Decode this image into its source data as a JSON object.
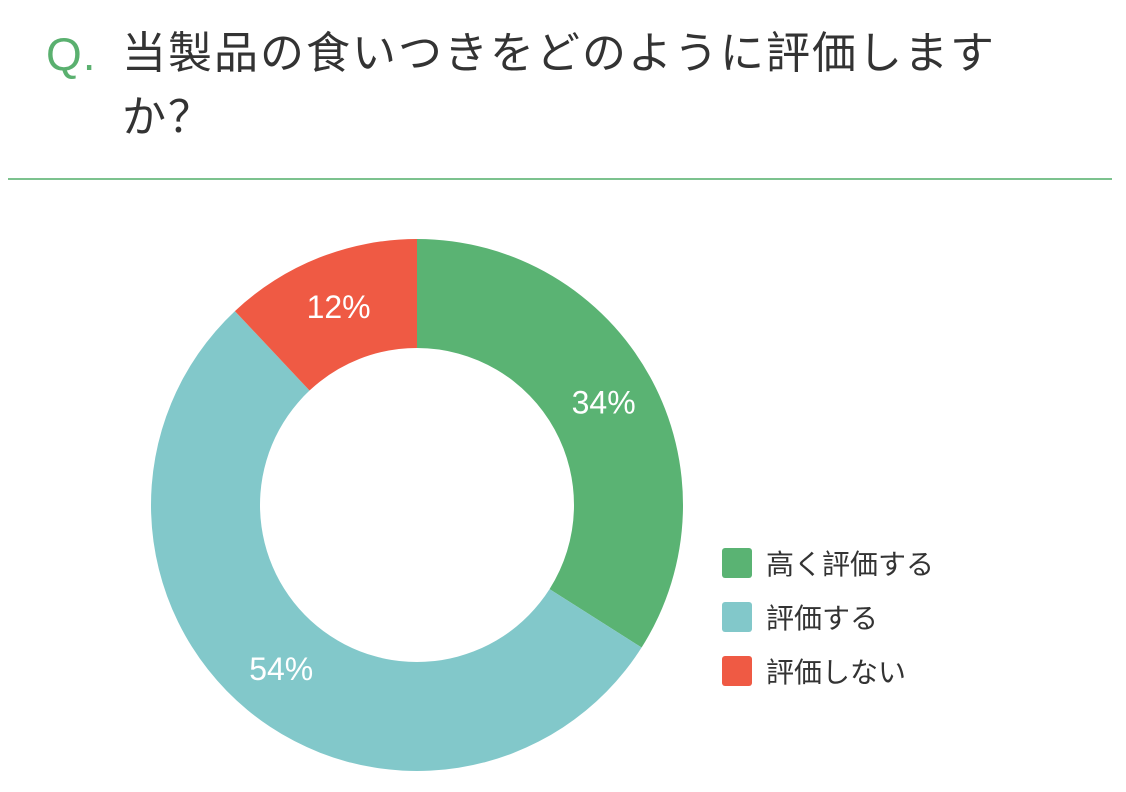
{
  "question": {
    "prefix": "Q.",
    "text": "当製品の食いつきをどのように評価しますか？"
  },
  "chart_data": {
    "type": "pie",
    "donut": true,
    "series": [
      {
        "name": "高く評価する",
        "value": 34,
        "label": "34%",
        "color": "#5ab373"
      },
      {
        "name": "評価する",
        "value": 54,
        "label": "54%",
        "color": "#82c8ca"
      },
      {
        "name": "評価しない",
        "value": 12,
        "label": "12%",
        "color": "#ef5a44"
      }
    ],
    "legend_position": "right-bottom"
  },
  "colors": {
    "accent": "#5ab06f",
    "divider": "#7cc28e",
    "text": "#333333"
  }
}
